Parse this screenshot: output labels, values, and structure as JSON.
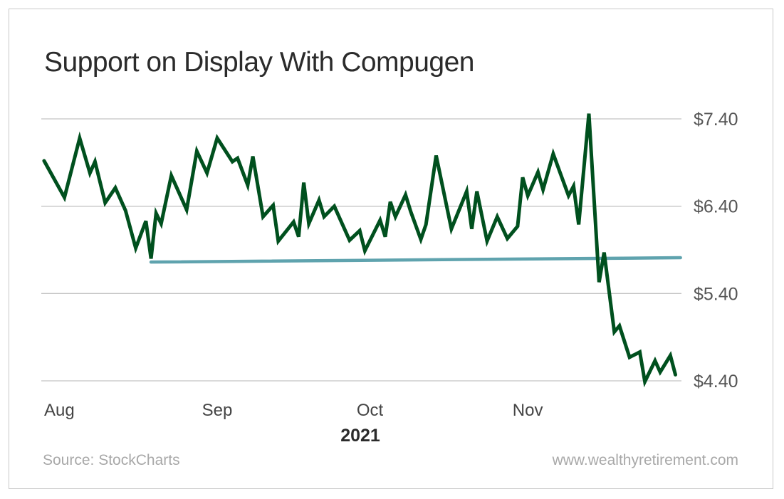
{
  "chart_data": {
    "type": "line",
    "title": "Support on Display With Compugen",
    "xlabel": "2021",
    "ylabel": "",
    "x_ticks": [
      {
        "label": "Aug",
        "date": "2021-08-01"
      },
      {
        "label": "Sep",
        "date": "2021-09-01"
      },
      {
        "label": "Oct",
        "date": "2021-10-01"
      },
      {
        "label": "Nov",
        "date": "2021-11-01"
      }
    ],
    "y_ticks": [
      {
        "label": "$7.40",
        "value": 7.4
      },
      {
        "label": "$6.40",
        "value": 6.4
      },
      {
        "label": "$5.40",
        "value": 5.4
      },
      {
        "label": "$4.40",
        "value": 4.4
      }
    ],
    "ylim": [
      4.4,
      7.4
    ],
    "y_axis_side": "right",
    "grid": "horizontal",
    "series": [
      {
        "color": "#00501e",
        "points": [
          [
            "2021-07-29",
            6.92
          ],
          [
            "2021-08-02",
            6.5
          ],
          [
            "2021-08-05",
            7.18
          ],
          [
            "2021-08-07",
            6.78
          ],
          [
            "2021-08-08",
            6.91
          ],
          [
            "2021-08-10",
            6.44
          ],
          [
            "2021-08-12",
            6.61
          ],
          [
            "2021-08-14",
            6.35
          ],
          [
            "2021-08-16",
            5.92
          ],
          [
            "2021-08-18",
            6.23
          ],
          [
            "2021-08-19",
            5.8
          ],
          [
            "2021-08-20",
            6.32
          ],
          [
            "2021-08-21",
            6.2
          ],
          [
            "2021-08-23",
            6.75
          ],
          [
            "2021-08-26",
            6.36
          ],
          [
            "2021-08-28",
            7.03
          ],
          [
            "2021-08-30",
            6.78
          ],
          [
            "2021-09-01",
            7.18
          ],
          [
            "2021-09-04",
            6.91
          ],
          [
            "2021-09-05",
            6.95
          ],
          [
            "2021-09-07",
            6.64
          ],
          [
            "2021-09-08",
            6.97
          ],
          [
            "2021-09-10",
            6.28
          ],
          [
            "2021-09-12",
            6.41
          ],
          [
            "2021-09-13",
            6.0
          ],
          [
            "2021-09-16",
            6.22
          ],
          [
            "2021-09-17",
            6.05
          ],
          [
            "2021-09-18",
            6.67
          ],
          [
            "2021-09-19",
            6.2
          ],
          [
            "2021-09-21",
            6.47
          ],
          [
            "2021-09-22",
            6.28
          ],
          [
            "2021-09-24",
            6.4
          ],
          [
            "2021-09-27",
            6.01
          ],
          [
            "2021-09-29",
            6.12
          ],
          [
            "2021-09-30",
            5.89
          ],
          [
            "2021-10-03",
            6.24
          ],
          [
            "2021-10-04",
            6.05
          ],
          [
            "2021-10-05",
            6.45
          ],
          [
            "2021-10-06",
            6.28
          ],
          [
            "2021-10-08",
            6.53
          ],
          [
            "2021-10-09",
            6.34
          ],
          [
            "2021-10-11",
            6.02
          ],
          [
            "2021-10-12",
            6.19
          ],
          [
            "2021-10-14",
            6.98
          ],
          [
            "2021-10-17",
            6.14
          ],
          [
            "2021-10-20",
            6.57
          ],
          [
            "2021-10-21",
            6.14
          ],
          [
            "2021-10-22",
            6.57
          ],
          [
            "2021-10-24",
            6.0
          ],
          [
            "2021-10-26",
            6.28
          ],
          [
            "2021-10-28",
            6.03
          ],
          [
            "2021-10-30",
            6.17
          ],
          [
            "2021-10-31",
            6.73
          ],
          [
            "2021-11-01",
            6.52
          ],
          [
            "2021-11-03",
            6.79
          ],
          [
            "2021-11-04",
            6.59
          ],
          [
            "2021-11-06",
            7.0
          ],
          [
            "2021-11-09",
            6.52
          ],
          [
            "2021-11-10",
            6.63
          ],
          [
            "2021-11-11",
            6.19
          ],
          [
            "2021-11-13",
            7.46
          ],
          [
            "2021-11-15",
            5.53
          ],
          [
            "2021-11-16",
            5.87
          ],
          [
            "2021-11-18",
            4.96
          ],
          [
            "2021-11-19",
            5.03
          ],
          [
            "2021-11-21",
            4.67
          ],
          [
            "2021-11-23",
            4.73
          ],
          [
            "2021-11-24",
            4.39
          ],
          [
            "2021-11-26",
            4.63
          ],
          [
            "2021-11-27",
            4.5
          ],
          [
            "2021-11-29",
            4.69
          ],
          [
            "2021-11-30",
            4.47
          ]
        ]
      }
    ],
    "support_line": {
      "color": "#5fa3ae",
      "points": [
        [
          "2021-08-19",
          5.76
        ],
        [
          "2021-12-01",
          5.81
        ]
      ]
    }
  },
  "footer": {
    "source": "Source: StockCharts",
    "site": "www.wealthyretirement.com"
  }
}
